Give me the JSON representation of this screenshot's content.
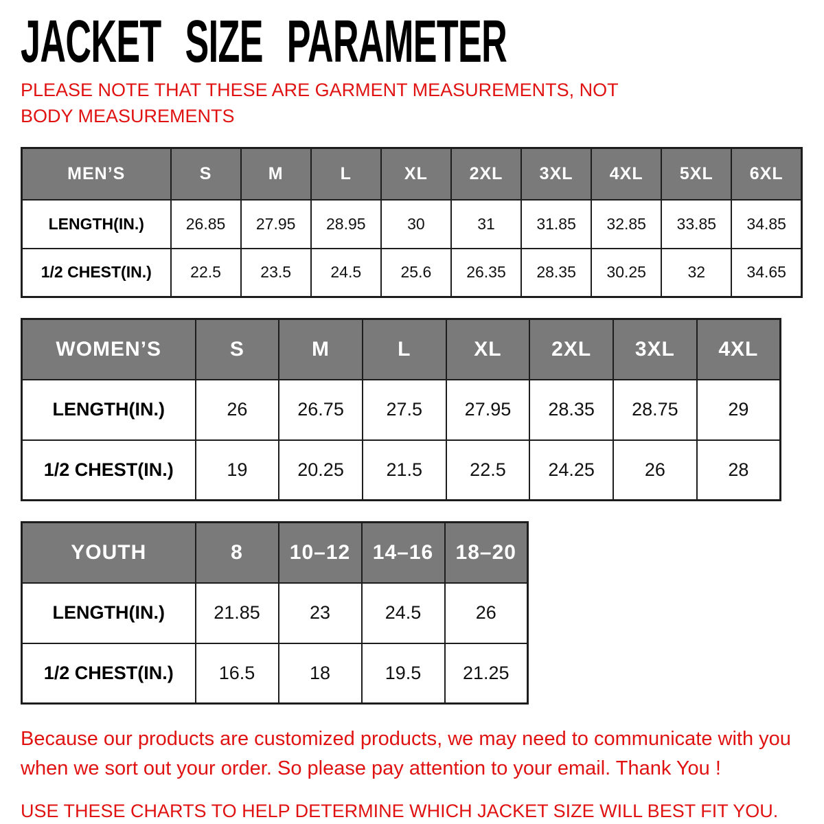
{
  "page": {
    "title": "JACKET SIZE PARAMETER",
    "subtitle": "PLEASE NOTE THAT THESE ARE GARMENT MEASUREMENTS, NOT BODY MEASUREMENTS",
    "footer_note": "Because our products are customized products, we may need to communicate with you when we sort out your order. So please pay attention to your email. Thank You !",
    "footer_tip": "USE THESE CHARTS TO HELP DETERMINE WHICH JACKET SIZE WILL BEST FIT YOU."
  },
  "colors": {
    "accent_red": "#e01212",
    "header_gray": "#7a7a7a",
    "border": "#1d1d1d"
  },
  "tables": [
    {
      "id": "mens",
      "group_label": "MEN’S",
      "header": [
        "MEN’S",
        "S",
        "M",
        "L",
        "XL",
        "2XL",
        "3XL",
        "4XL",
        "5XL",
        "6XL"
      ],
      "rows": [
        {
          "label": "LENGTH(IN.)",
          "values": [
            "26.85",
            "27.95",
            "28.95",
            "30",
            "31",
            "31.85",
            "32.85",
            "33.85",
            "34.85"
          ]
        },
        {
          "label": "1/2 CHEST(IN.)",
          "values": [
            "22.5",
            "23.5",
            "24.5",
            "25.6",
            "26.35",
            "28.35",
            "30.25",
            "32",
            "34.65"
          ]
        }
      ]
    },
    {
      "id": "womens",
      "group_label": "WOMEN’S",
      "header": [
        "WOMEN’S",
        "S",
        "M",
        "L",
        "XL",
        "2XL",
        "3XL",
        "4XL"
      ],
      "rows": [
        {
          "label": "LENGTH(IN.)",
          "values": [
            "26",
            "26.75",
            "27.5",
            "27.95",
            "28.35",
            "28.75",
            "29"
          ]
        },
        {
          "label": "1/2 CHEST(IN.)",
          "values": [
            "19",
            "20.25",
            "21.5",
            "22.5",
            "24.25",
            "26",
            "28"
          ]
        }
      ]
    },
    {
      "id": "youth",
      "group_label": "YOUTH",
      "header": [
        "YOUTH",
        "8",
        "10–12",
        "14–16",
        "18–20"
      ],
      "rows": [
        {
          "label": "LENGTH(IN.)",
          "values": [
            "21.85",
            "23",
            "24.5",
            "26"
          ]
        },
        {
          "label": "1/2 CHEST(IN.)",
          "values": [
            "16.5",
            "18",
            "19.5",
            "21.25"
          ]
        }
      ]
    }
  ]
}
